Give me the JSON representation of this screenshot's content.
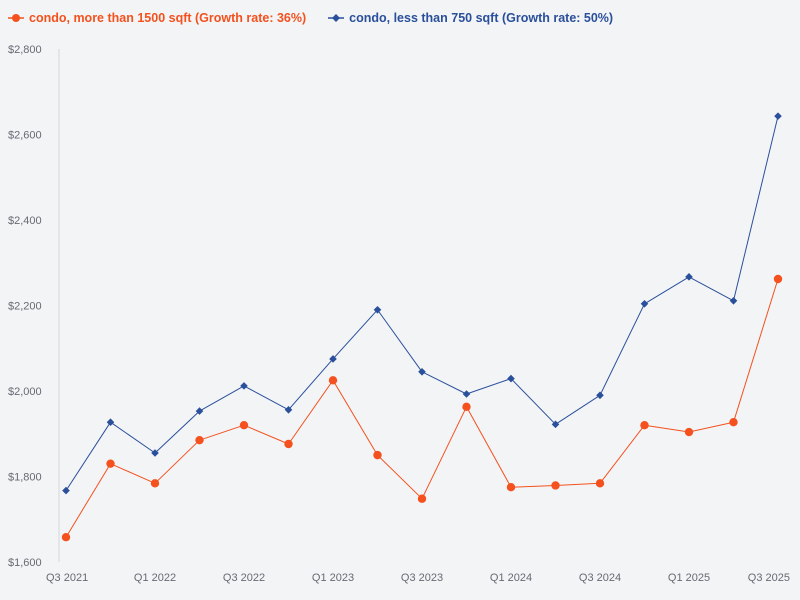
{
  "chart_data": {
    "type": "line",
    "title": "",
    "xlabel": "",
    "ylabel": "",
    "ylim": [
      1600,
      2800
    ],
    "yticks": [
      1600,
      1800,
      2000,
      2200,
      2400,
      2600,
      2800
    ],
    "ytick_labels": [
      "$1,600",
      "$1,800",
      "$2,000",
      "$2,200",
      "$2,400",
      "$2,600",
      "$2,800"
    ],
    "x_labels": [
      "Q3 2021",
      "Q1 2022",
      "Q3 2022",
      "Q1 2023",
      "Q3 2023",
      "Q1 2024",
      "Q3 2024",
      "Q1 2025",
      "Q3 2025"
    ],
    "x_label_indices": [
      0,
      2,
      4,
      6,
      8,
      10,
      12,
      14,
      16
    ],
    "x": [
      "Q3 2021",
      "Q4 2021",
      "Q1 2022",
      "Q2 2022",
      "Q3 2022",
      "Q4 2022",
      "Q1 2023",
      "Q2 2023",
      "Q3 2023",
      "Q4 2023",
      "Q1 2024",
      "Q2 2024",
      "Q3 2024",
      "Q4 2024",
      "Q1 2025",
      "Q2 2025",
      "Q3 2025"
    ],
    "legend_position": "top-left",
    "grid": false,
    "series": [
      {
        "name": "condo, more than 1500 sqft (Growth rate: 36%)",
        "color": "#f4511e",
        "marker": "circle",
        "values": [
          1658,
          1830,
          1784,
          1885,
          1920,
          1876,
          2025,
          1850,
          1748,
          1963,
          1775,
          1779,
          1784,
          1920,
          1904,
          1927,
          2262
        ]
      },
      {
        "name": "condo, less than 750 sqft (Growth rate: 50%)",
        "color": "#2a4f9b",
        "marker": "diamond",
        "values": [
          1767,
          1927,
          1855,
          1953,
          2012,
          1956,
          2075,
          2190,
          2045,
          1993,
          2029,
          1922,
          1990,
          2204,
          2267,
          2211,
          2643
        ]
      }
    ]
  }
}
